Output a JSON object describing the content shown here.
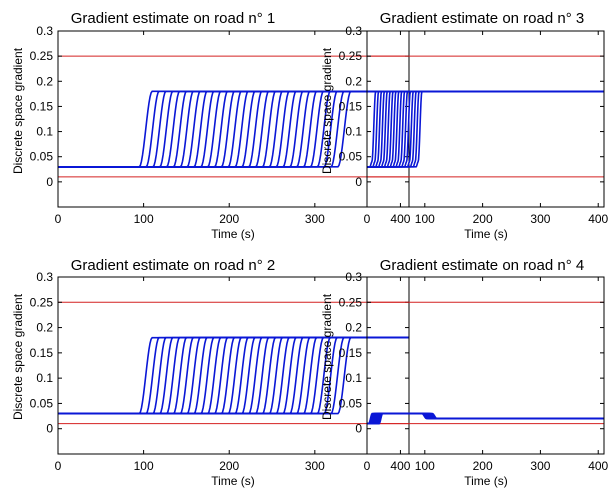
{
  "figure": {
    "background": "#ffffff",
    "axis_color": "#000000"
  },
  "chart_data": [
    {
      "type": "line",
      "title": "Gradient estimate on road n° 1",
      "xlabel": "Time (s)",
      "ylabel": "Discrete space gradient",
      "xlim": [
        0,
        410
      ],
      "ylim": [
        -0.05,
        0.3
      ],
      "xticks": [
        0,
        100,
        200,
        300,
        400
      ],
      "yticks": [
        0,
        0.05,
        0.1,
        0.15,
        0.2,
        0.25,
        0.3
      ],
      "grid": false,
      "reference_lines": {
        "values": [
          0.25,
          0.01
        ],
        "color": "#d42020"
      },
      "trajectories": {
        "color": "#0a17d6",
        "low": 0.03,
        "high": 0.18,
        "switch_times": [
          95,
          103,
          111,
          119,
          127,
          135,
          143,
          151,
          159,
          167,
          175,
          183,
          191,
          199,
          207,
          215,
          223,
          231,
          239,
          247,
          255,
          263,
          271,
          279,
          287,
          295,
          303,
          311,
          319,
          327
        ],
        "rise_time": 15,
        "end_time": 410
      }
    },
    {
      "type": "line",
      "title": "Gradient estimate on road n° 3",
      "xlabel": "Time (s)",
      "ylabel": "Discrete space gradient",
      "xlim": [
        0,
        410
      ],
      "ylim": [
        -0.05,
        0.3
      ],
      "xticks": [
        0,
        100,
        200,
        300,
        400
      ],
      "yticks": [
        0,
        0.05,
        0.1,
        0.15,
        0.2,
        0.25,
        0.3
      ],
      "grid": false,
      "reference_lines": {
        "values": [
          0.25,
          0.01
        ],
        "color": "#d42020"
      },
      "trajectories": {
        "color": "#0a17d6",
        "low": 0.03,
        "high": 0.18,
        "switch_times": [
          5,
          10,
          15,
          20,
          25,
          30,
          35,
          40,
          45,
          50,
          55,
          60,
          65,
          70,
          75,
          80,
          85
        ],
        "rise_time": 10,
        "dip_value": 0.04,
        "end_time": 410
      }
    },
    {
      "type": "line",
      "title": "Gradient estimate on road n° 2",
      "xlabel": "Time (s)",
      "ylabel": "Discrete space gradient",
      "xlim": [
        0,
        410
      ],
      "ylim": [
        -0.05,
        0.3
      ],
      "xticks": [
        0,
        100,
        200,
        300,
        400
      ],
      "yticks": [
        0,
        0.05,
        0.1,
        0.15,
        0.2,
        0.25,
        0.3
      ],
      "grid": false,
      "reference_lines": {
        "values": [
          0.25,
          0.01
        ],
        "color": "#d42020"
      },
      "trajectories": {
        "color": "#0a17d6",
        "low": 0.03,
        "high": 0.18,
        "switch_times": [
          95,
          103,
          111,
          119,
          127,
          135,
          143,
          151,
          159,
          167,
          175,
          183,
          191,
          199,
          207,
          215,
          223,
          231,
          239,
          247,
          255,
          263,
          271,
          279,
          287,
          295,
          303,
          311,
          319,
          327
        ],
        "rise_time": 15,
        "end_time": 410
      }
    },
    {
      "type": "line",
      "title": "Gradient estimate on road n° 4",
      "xlabel": "Time (s)",
      "ylabel": "Discrete space gradient",
      "xlim": [
        0,
        410
      ],
      "ylim": [
        -0.05,
        0.3
      ],
      "xticks": [
        0,
        100,
        200,
        300,
        400
      ],
      "yticks": [
        0,
        0.05,
        0.1,
        0.15,
        0.2,
        0.25,
        0.3
      ],
      "grid": false,
      "reference_lines": {
        "values": [
          0.25,
          0.01
        ],
        "color": "#d42020"
      },
      "trajectories": {
        "color": "#0a17d6",
        "start_low": 0.01,
        "plateau": 0.03,
        "final": 0.02,
        "rise_times": [
          3,
          5,
          7,
          9,
          11,
          13,
          15,
          17,
          19,
          21
        ],
        "drop_times": [
          95,
          97,
          99,
          101,
          103,
          105,
          107,
          109,
          111,
          113
        ],
        "end_time": 410
      }
    }
  ]
}
